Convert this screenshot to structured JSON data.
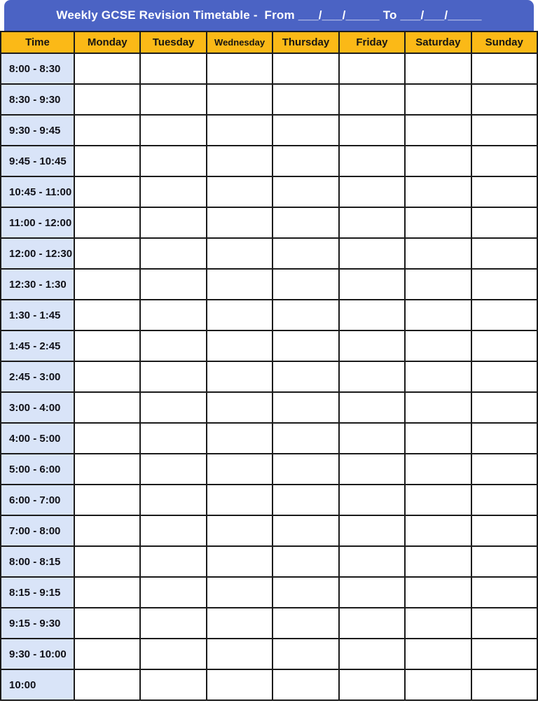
{
  "title": {
    "text": "Weekly GCSE Revision Timetable -  From ___/___/_____ To ___/___/_____"
  },
  "table": {
    "columns": [
      "Time",
      "Monday",
      "Tuesday",
      "Wednesday",
      "Thursday",
      "Friday",
      "Saturday",
      "Sunday"
    ],
    "time_slots": [
      "8:00 - 8:30",
      "8:30 - 9:30",
      "9:30 - 9:45",
      "9:45 - 10:45",
      "10:45 - 11:00",
      "11:00 - 12:00",
      "12:00 - 12:30",
      "12:30 - 1:30",
      "1:30 - 1:45",
      "1:45 - 2:45",
      "2:45 - 3:00",
      "3:00 - 4:00",
      "4:00 - 5:00",
      "5:00 - 6:00",
      "6:00 - 7:00",
      "7:00 - 8:00",
      "8:00 - 8:15",
      "8:15 - 9:15",
      "9:15 - 9:30",
      "9:30 - 10:00",
      "10:00"
    ]
  },
  "colors": {
    "title_bar": "#4B63C4",
    "title_text": "#FFFFFF",
    "day_header_bg": "#FBB917",
    "day_header_text": "#171512",
    "time_cell_bg": "#D9E4F8",
    "time_text": "#111118",
    "grid_border": "#1B1B1B",
    "schedule_cell_bg": "#FFFFFF"
  }
}
